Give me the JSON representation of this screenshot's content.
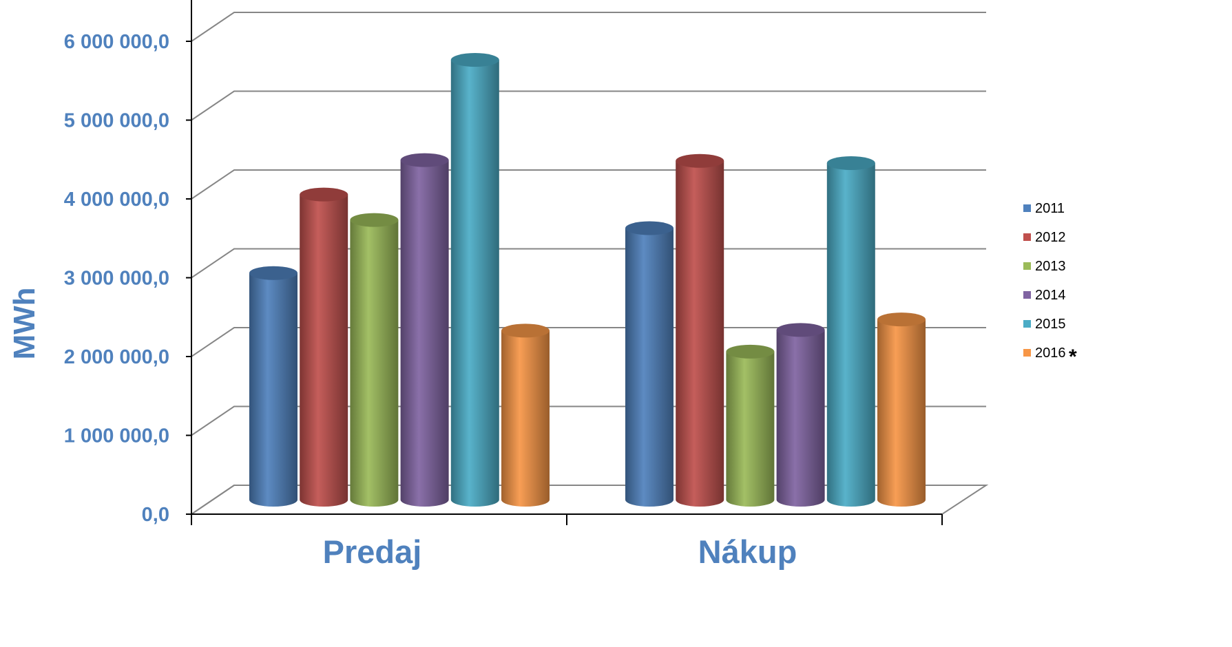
{
  "chart_data": {
    "type": "bar",
    "style": "3d-cylinder",
    "categories": [
      "Predaj",
      "Nákup"
    ],
    "series": [
      {
        "name": "2011",
        "color": "#4F81BD",
        "values": [
          3030000,
          3630000
        ]
      },
      {
        "name": "2012",
        "color": "#C0504D",
        "values": [
          4080000,
          4530000
        ]
      },
      {
        "name": "2013",
        "color": "#9BBB59",
        "values": [
          3740000,
          1980000
        ]
      },
      {
        "name": "2014",
        "color": "#8064A2",
        "values": [
          4540000,
          2270000
        ]
      },
      {
        "name": "2015",
        "color": "#4BACC6",
        "values": [
          5880000,
          4500000
        ]
      },
      {
        "name": "2016",
        "color": "#F79646",
        "values": [
          2260000,
          2410000
        ]
      }
    ],
    "legend_note": "*",
    "ylabel": "MWh",
    "xlabel": "",
    "ylim": [
      0,
      6000000
    ],
    "yticks": [
      0,
      1000000,
      2000000,
      3000000,
      4000000,
      5000000,
      6000000
    ],
    "ytick_labels": [
      "0,0",
      "1 000 000,0",
      "2 000 000,0",
      "3 000 000,0",
      "4 000 000,0",
      "5 000 000,0",
      "6 000 000,0"
    ],
    "grid": true,
    "legend_position": "right"
  }
}
